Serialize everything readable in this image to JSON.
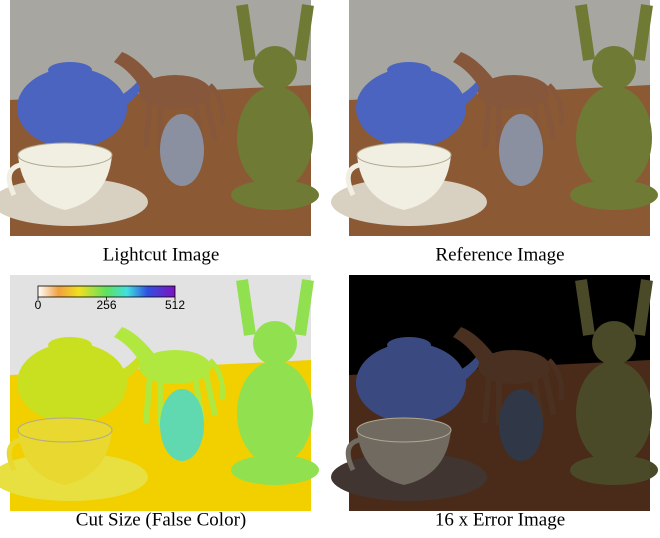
{
  "figure": {
    "panels": [
      {
        "caption": "Lightcut Image"
      },
      {
        "caption": "Reference Image"
      },
      {
        "caption": "Cut Size (False Color)",
        "colorbar": {
          "ticks": [
            0,
            256,
            512
          ]
        }
      },
      {
        "caption": "16 x Error Image"
      }
    ]
  }
}
